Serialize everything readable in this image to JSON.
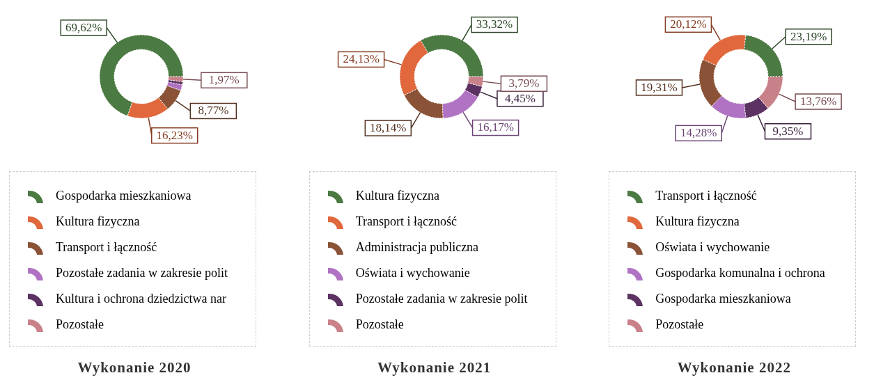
{
  "chart_data": [
    {
      "type": "donut",
      "title": "Wykonanie 2020",
      "categories": [
        "Gospodarka mieszkaniowa",
        "Kultura fizyczna",
        "Transport i łączność",
        "Pozostałe zadania w zakresie polit",
        "Kultura i ochrona dziedzictwa nar",
        "Pozostałe"
      ],
      "values": [
        69.62,
        16.23,
        8.77,
        2.2,
        1.2,
        1.97
      ],
      "value_labels": [
        "69,62%",
        "16,23%",
        "8,77%",
        null,
        null,
        "1,97%"
      ],
      "colors": [
        "#4b7a42",
        "#e0683c",
        "#8a5236",
        "#b072c2",
        "#5b3262",
        "#c98189"
      ],
      "legend": "bottom"
    },
    {
      "type": "donut",
      "title": "Wykonanie 2021",
      "categories": [
        "Kultura fizyczna",
        "Transport i łączność",
        "Administracja publiczna",
        "Oświata i wychowanie",
        "Pozostałe zadania w zakresie polit",
        "Pozostałe"
      ],
      "values": [
        33.32,
        24.13,
        18.14,
        16.17,
        4.45,
        3.79
      ],
      "value_labels": [
        "33,32%",
        "24,13%",
        "18,14%",
        "16,17%",
        "4,45%",
        "3,79%"
      ],
      "colors": [
        "#4b7a42",
        "#e0683c",
        "#8a5236",
        "#b072c2",
        "#5b3262",
        "#c98189"
      ],
      "legend": "bottom"
    },
    {
      "type": "donut",
      "title": "Wykonanie 2022",
      "categories": [
        "Transport i łączność",
        "Kultura fizyczna",
        "Oświata i wychowanie",
        "Gospodarka komunalna i ochrona",
        "Gospodarka mieszkaniowa",
        "Pozostałe"
      ],
      "values": [
        23.19,
        20.12,
        19.31,
        14.28,
        9.35,
        13.76
      ],
      "value_labels": [
        "23,19%",
        "20,12%",
        "19,31%",
        "14,28%",
        "9,35%",
        "13,76%"
      ],
      "colors": [
        "#4b7a42",
        "#e0683c",
        "#8a5236",
        "#b072c2",
        "#5b3262",
        "#c98189"
      ],
      "legend": "bottom"
    }
  ]
}
